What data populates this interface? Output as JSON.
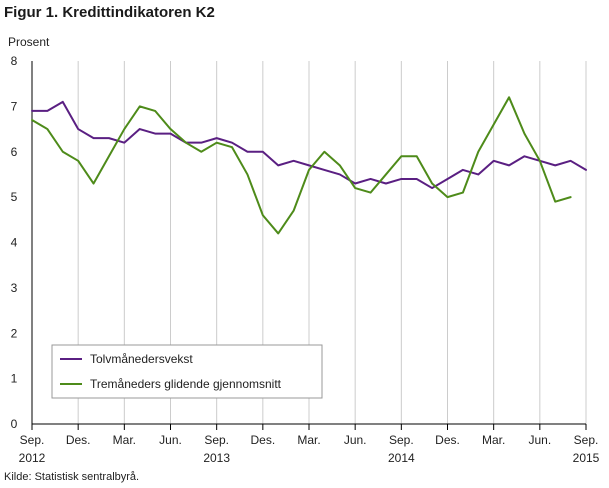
{
  "title": "Figur 1. Kredittindikatoren K2",
  "source": "Kilde: Statistisk sentralbyrå.",
  "colors": {
    "series1": "#5a1f82",
    "series2": "#4e8b1a",
    "grid": "#cccccc",
    "axis": "#000000"
  },
  "chart_data": {
    "type": "line",
    "title": "Figur 1. Kredittindikatoren K2",
    "ylabel": "Prosent",
    "xlabel": "",
    "ylim": [
      0,
      8
    ],
    "yticks": [
      0,
      1,
      2,
      3,
      4,
      5,
      6,
      7,
      8
    ],
    "x_labels": [
      {
        "index": 0,
        "label": "Sep."
      },
      {
        "index": 3,
        "label": "Des."
      },
      {
        "index": 6,
        "label": "Mar."
      },
      {
        "index": 9,
        "label": "Jun."
      },
      {
        "index": 12,
        "label": "Sep."
      },
      {
        "index": 15,
        "label": "Des."
      },
      {
        "index": 18,
        "label": "Mar."
      },
      {
        "index": 21,
        "label": "Jun."
      },
      {
        "index": 24,
        "label": "Sep."
      },
      {
        "index": 27,
        "label": "Des."
      },
      {
        "index": 30,
        "label": "Mar."
      },
      {
        "index": 33,
        "label": "Jun."
      },
      {
        "index": 36,
        "label": "Sep."
      }
    ],
    "year_labels": [
      {
        "index": 0,
        "label": "2012"
      },
      {
        "index": 12,
        "label": "2013"
      },
      {
        "index": 24,
        "label": "2014"
      },
      {
        "index": 36,
        "label": "2015"
      }
    ],
    "legend_placement": "bottom-left",
    "grid": true,
    "series": [
      {
        "name": "Tolvmånedersvekst",
        "values": [
          6.9,
          6.9,
          7.1,
          6.5,
          6.3,
          6.3,
          6.2,
          6.5,
          6.4,
          6.4,
          6.2,
          6.2,
          6.3,
          6.2,
          6.0,
          6.0,
          5.7,
          5.8,
          5.7,
          5.6,
          5.5,
          5.3,
          5.4,
          5.3,
          5.4,
          5.4,
          5.2,
          5.4,
          5.6,
          5.5,
          5.8,
          5.7,
          5.9,
          5.8,
          5.7,
          5.8,
          5.6
        ]
      },
      {
        "name": "Tremåneders glidende gjennomsnitt",
        "values": [
          6.7,
          6.5,
          6.0,
          5.8,
          5.3,
          5.9,
          6.5,
          7.0,
          6.9,
          6.5,
          6.2,
          6.0,
          6.2,
          6.1,
          5.5,
          4.6,
          4.2,
          4.7,
          5.6,
          6.0,
          5.7,
          5.2,
          5.1,
          5.5,
          5.9,
          5.9,
          5.3,
          5.0,
          5.1,
          6.0,
          6.6,
          7.2,
          6.4,
          5.8,
          4.9,
          5.0
        ]
      }
    ]
  }
}
